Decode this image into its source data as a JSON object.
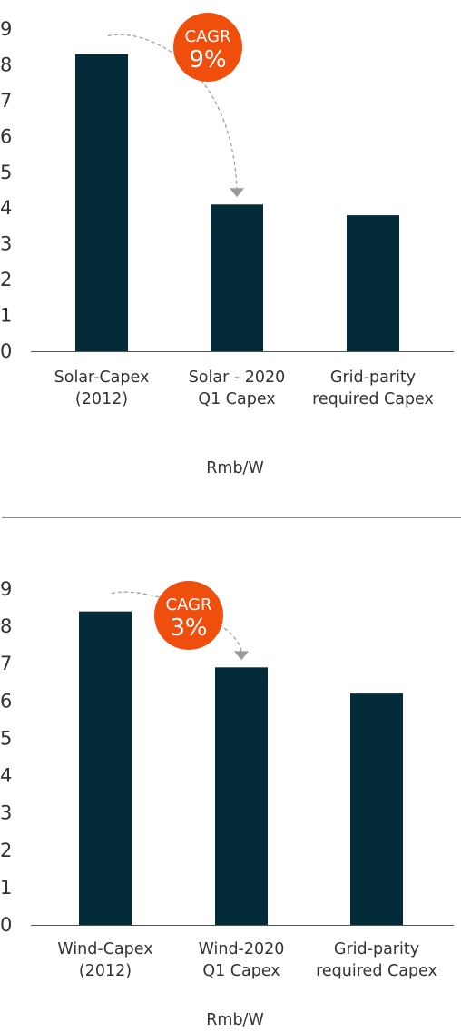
{
  "colors": {
    "bar": "#032b38",
    "badge": "#f04e0c",
    "arrow": "#9a9a9a",
    "axis": "#555555"
  },
  "chart_data": [
    {
      "type": "bar",
      "categories": [
        [
          "Solar-Capex",
          "(2012)"
        ],
        [
          "Solar - 2020",
          "Q1 Capex"
        ],
        [
          "Grid-parity",
          "required Capex"
        ]
      ],
      "values": [
        8.3,
        4.1,
        3.8
      ],
      "yticks": [
        0,
        1,
        2,
        3,
        4,
        5,
        6,
        7,
        8,
        9
      ],
      "ylim": [
        0,
        9
      ],
      "unit_label": "Rmb/W",
      "annotation": {
        "line1": "CAGR",
        "line2": "9%",
        "from": 0,
        "to": 1
      },
      "grid": false
    },
    {
      "type": "bar",
      "categories": [
        [
          "Wind-Capex",
          "(2012)"
        ],
        [
          "Wind-2020",
          "Q1 Capex"
        ],
        [
          "Grid-parity",
          "required Capex"
        ]
      ],
      "values": [
        8.4,
        6.9,
        6.2
      ],
      "yticks": [
        0,
        1,
        2,
        3,
        4,
        5,
        6,
        7,
        8,
        9
      ],
      "ylim": [
        0,
        9
      ],
      "unit_label": "Rmb/W",
      "annotation": {
        "line1": "CAGR",
        "line2": "3%",
        "from": 0,
        "to": 1
      },
      "grid": false
    }
  ]
}
